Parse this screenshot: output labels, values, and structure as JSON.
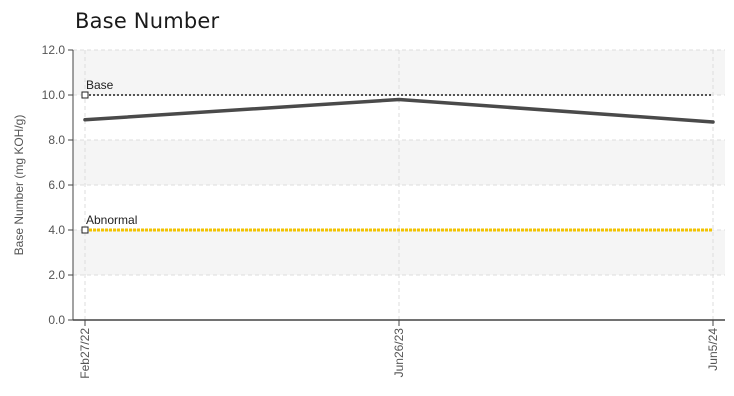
{
  "chart_data": {
    "type": "line",
    "title": "Base Number",
    "ylabel": "Base Number (mg KOH/g)",
    "xlabel": "",
    "ylim": [
      0,
      12
    ],
    "yticks": [
      "0.0",
      "2.0",
      "4.0",
      "6.0",
      "8.0",
      "10.0",
      "12.0"
    ],
    "categories": [
      "Feb27/22",
      "Jun26/23",
      "Jun5/24"
    ],
    "series": [
      {
        "values": [
          8.9,
          9.8,
          8.8
        ],
        "color": "#4a4a4a"
      }
    ],
    "reference_lines": [
      {
        "label": "Base",
        "value": 10.0,
        "color": "#555555",
        "style": "dotted"
      },
      {
        "label": "Abnormal",
        "value": 4.0,
        "color": "#f2c300",
        "style": "dotted"
      }
    ],
    "grid": true,
    "legend": "none"
  }
}
